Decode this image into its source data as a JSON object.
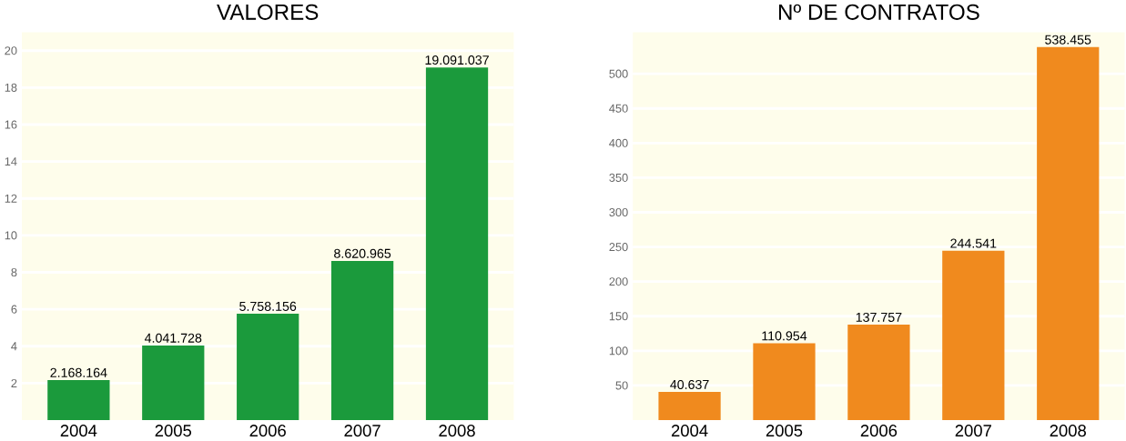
{
  "chart_data": [
    {
      "type": "bar",
      "title": "VALORES",
      "categories": [
        "2004",
        "2005",
        "2006",
        "2007",
        "2008"
      ],
      "values": [
        2.168164,
        4.041728,
        5.758156,
        8.620965,
        19.091037
      ],
      "color": "#1b9a3c",
      "ylim": [
        0,
        21
      ],
      "yticks": [
        2,
        4,
        6,
        8,
        10,
        12,
        14,
        16,
        18,
        20
      ],
      "grid": "y",
      "annotations": [
        {
          "text": "2.168.164",
          "x": "2004",
          "y": 2.168164
        },
        {
          "text": "4.041.728",
          "x": "2005",
          "y": 4.041728
        },
        {
          "text": "5.758.156",
          "x": "2006",
          "y": 5.758156
        },
        {
          "text": "8.620.965",
          "x": "2007",
          "y": 8.620965
        },
        {
          "text": "19.091.037",
          "x": "2008",
          "y": 19.091037
        }
      ]
    },
    {
      "type": "bar",
      "title": "Nº DE CONTRATOS",
      "categories": [
        "2004",
        "2005",
        "2006",
        "2007",
        "2008"
      ],
      "values": [
        40.637,
        110.954,
        137.757,
        244.541,
        538.455
      ],
      "color": "#f08a1e",
      "ylim": [
        0,
        560
      ],
      "yticks": [
        50,
        100,
        150,
        200,
        250,
        300,
        350,
        400,
        450,
        500
      ],
      "grid": "y",
      "annotations": [
        {
          "text": "40.637",
          "x": "2004",
          "y": 40.637
        },
        {
          "text": "110.954",
          "x": "2005",
          "y": 110.954
        },
        {
          "text": "137.757",
          "x": "2006",
          "y": 137.757
        },
        {
          "text": "244.541",
          "x": "2007",
          "y": 244.541
        },
        {
          "text": "538.455",
          "x": "2008",
          "y": 538.455
        }
      ]
    }
  ]
}
